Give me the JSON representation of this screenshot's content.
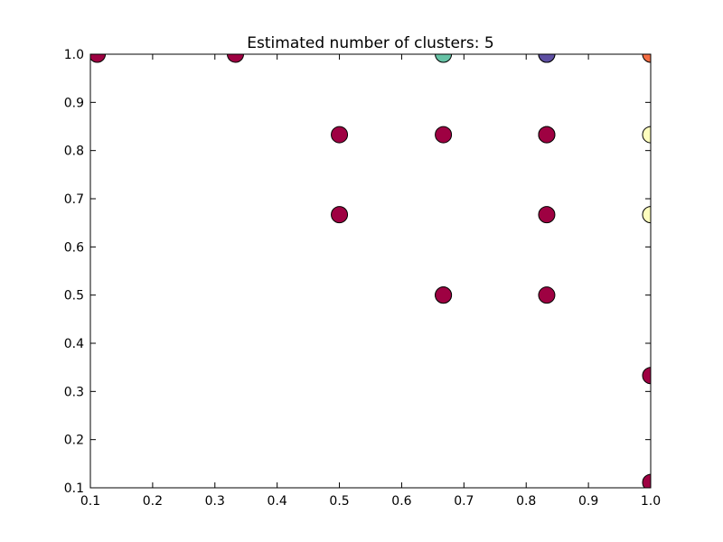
{
  "chart_data": {
    "type": "scatter",
    "title": "Estimated number of clusters: 5",
    "xlabel": "",
    "ylabel": "",
    "xlim": [
      0.1,
      1.0
    ],
    "ylim": [
      0.1,
      1.0
    ],
    "xticks": [
      "0.1",
      "0.2",
      "0.3",
      "0.4",
      "0.5",
      "0.6",
      "0.7",
      "0.8",
      "0.9",
      "1.0"
    ],
    "yticks": [
      "0.1",
      "0.2",
      "0.3",
      "0.4",
      "0.5",
      "0.6",
      "0.7",
      "0.8",
      "0.9",
      "1.0"
    ],
    "grid": false,
    "clusters": [
      {
        "color": "#9e0142",
        "points": [
          [
            0.111,
            1.0
          ],
          [
            0.333,
            1.0
          ],
          [
            0.5,
            0.833
          ],
          [
            0.5,
            0.667
          ],
          [
            0.667,
            0.833
          ],
          [
            0.667,
            0.5
          ],
          [
            0.667,
            0.5
          ],
          [
            0.833,
            0.833
          ],
          [
            0.833,
            0.833
          ],
          [
            0.833,
            0.667
          ],
          [
            0.833,
            0.5
          ],
          [
            1.0,
            0.333
          ],
          [
            1.0,
            0.111
          ]
        ]
      },
      {
        "color": "#66c2a5",
        "points": [
          [
            0.667,
            1.0
          ]
        ]
      },
      {
        "color": "#5e4fa2",
        "points": [
          [
            0.833,
            1.0
          ],
          [
            0.833,
            1.0
          ]
        ]
      },
      {
        "color": "#f46d43",
        "points": [
          [
            1.0,
            1.0
          ]
        ]
      },
      {
        "color": "#fefebe",
        "points": [
          [
            1.0,
            0.833
          ],
          [
            1.0,
            0.667
          ]
        ]
      }
    ]
  }
}
